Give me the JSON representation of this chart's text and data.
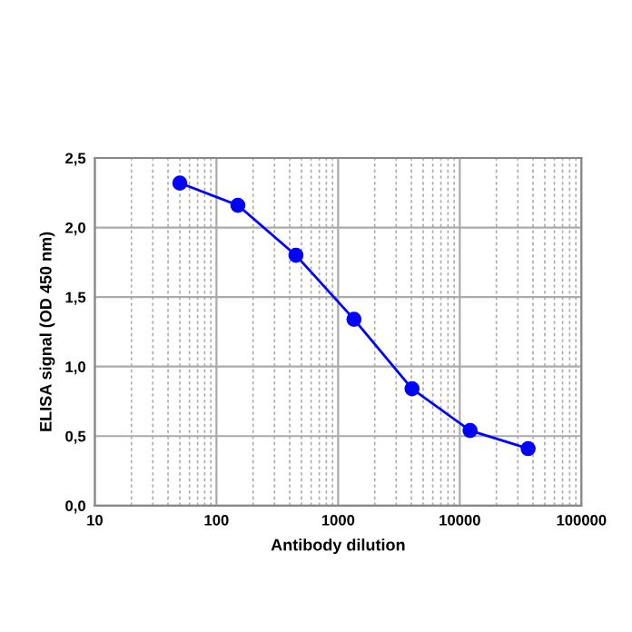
{
  "chart_data": {
    "type": "line",
    "xlabel": "Antibody dilution",
    "ylabel": "ELISA signal (OD 450 nm)",
    "log": "x",
    "x": [
      50,
      150,
      450,
      1350,
      4050,
      12150,
      36450
    ],
    "series": [
      {
        "color": "#0000ff",
        "values": [
          2.32,
          2.16,
          1.8,
          1.34,
          0.84,
          0.54,
          0.41
        ]
      }
    ],
    "xlim": [
      10,
      100000
    ],
    "xticks": [
      10,
      100,
      1000,
      10000,
      100000
    ],
    "ylim": [
      0,
      2.5
    ],
    "yticks": [
      {
        "value": 0,
        "label": "0,0"
      },
      {
        "value": 0.5,
        "label": "0,5"
      },
      {
        "value": 1.0,
        "label": "1,0"
      },
      {
        "value": 1.5,
        "label": "1,5"
      },
      {
        "value": 2.0,
        "label": "2,0"
      },
      {
        "value": 2.5,
        "label": "2,5"
      }
    ],
    "grid": true,
    "marker": "circle",
    "line_style": "solid",
    "legend": false
  }
}
